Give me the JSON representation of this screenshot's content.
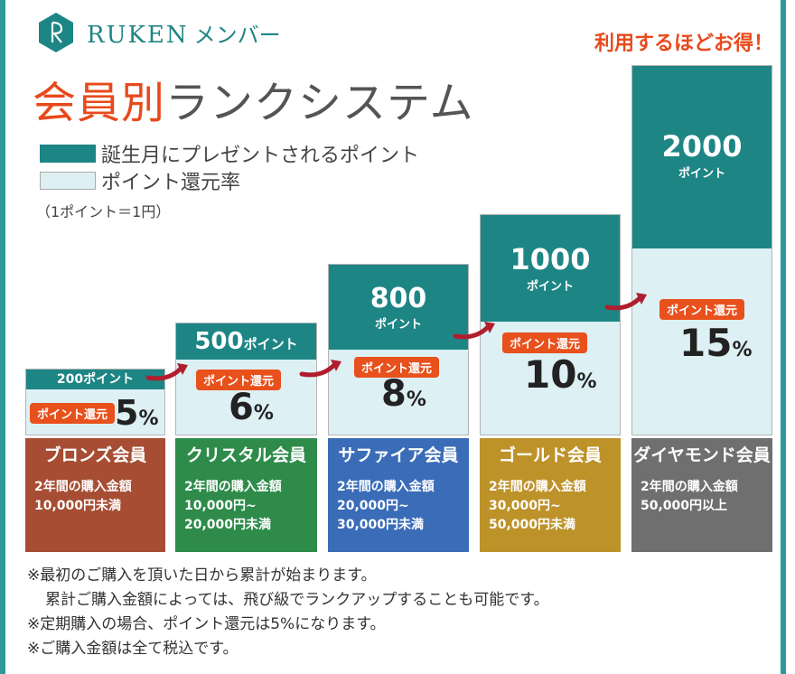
{
  "brand": {
    "name": "RUKEN",
    "sub": "メンバー",
    "logo_icon": "ruken-logo-icon",
    "color": "#1e8585"
  },
  "tagline": "利用するほどお得！",
  "title": {
    "accent": "会員別",
    "rest": "ランクシステム",
    "accent_color": "#e8491b"
  },
  "legend": {
    "teal_label": "誕生月にプレゼントされるポイント",
    "light_label": "ポイント還元率",
    "note": "（1ポイント＝1円）"
  },
  "ranks": [
    {
      "name": "ブロンズ会員",
      "color": "#a64d33",
      "points": "200",
      "points_unit": "ポイント",
      "badge": "ポイント還元",
      "rate": "5",
      "rate_unit": "%",
      "desc_label": "2年間の購入金額",
      "desc_range": "10,000円未満"
    },
    {
      "name": "クリスタル会員",
      "color": "#2e8b4a",
      "points": "500",
      "points_unit": "ポイント",
      "badge": "ポイント還元",
      "rate": "6",
      "rate_unit": "%",
      "desc_label": "2年間の購入金額",
      "desc_range": "10,000円~\n20,000円未満"
    },
    {
      "name": "サファイア会員",
      "color": "#3a6cb8",
      "points": "800",
      "points_unit": "ポイント",
      "badge": "ポイント還元",
      "rate": "8",
      "rate_unit": "%",
      "desc_label": "2年間の購入金額",
      "desc_range": "20,000円~\n30,000円未満"
    },
    {
      "name": "ゴールド会員",
      "color": "#bd9229",
      "points": "1000",
      "points_unit": "ポイント",
      "badge": "ポイント還元",
      "rate": "10",
      "rate_unit": "%",
      "desc_label": "2年間の購入金額",
      "desc_range": "30,000円~\n50,000円未満"
    },
    {
      "name": "ダイヤモンド会員",
      "color": "#6f6f6f",
      "points": "2000",
      "points_unit": "ポイント",
      "badge": "ポイント還元",
      "rate": "15",
      "rate_unit": "%",
      "desc_label": "2年間の購入金額",
      "desc_range": "50,000円以上"
    }
  ],
  "notes": [
    "※最初のご購入を頂いた日から累計が始まります。",
    "累計ご購入金額によっては、飛び級でランクアップすることも可能です。",
    "※定期購入の場合、ポイント還元は5%になります。",
    "※ご購入金額は全て税込です。"
  ],
  "colors": {
    "frame": "#2c9a9a",
    "band": "#1e8585",
    "light": "#ddf0f4",
    "accent": "#e8501c",
    "arrow": "#b01e2e"
  }
}
